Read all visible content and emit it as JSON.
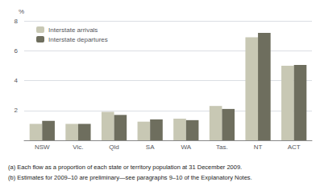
{
  "chart_data": {
    "type": "bar",
    "categories": [
      "NSW",
      "Vic.",
      "Qld",
      "SA",
      "WA",
      "Tas.",
      "NT",
      "ACT"
    ],
    "series": [
      {
        "name": "Interstate arrivals",
        "color": "#c8c8b4",
        "values": [
          1.1,
          1.1,
          1.9,
          1.25,
          1.45,
          2.3,
          6.9,
          5.0
        ]
      },
      {
        "name": "Interstate departures",
        "color": "#6e6e5e",
        "values": [
          1.3,
          1.1,
          1.7,
          1.4,
          1.35,
          2.1,
          7.2,
          5.05
        ]
      }
    ],
    "ylabel": "%",
    "ylim": [
      0,
      8
    ],
    "yticks": [
      2,
      4,
      6,
      8
    ],
    "grid": true,
    "legend": "upper left",
    "annotations": [
      "(a) Each flow as a proportion of each state or territory population at 31 December 2009.",
      "(b) Estimates for 2009–10 are preliminary—see paragraphs 9–10 of the Explanatory Notes."
    ]
  }
}
